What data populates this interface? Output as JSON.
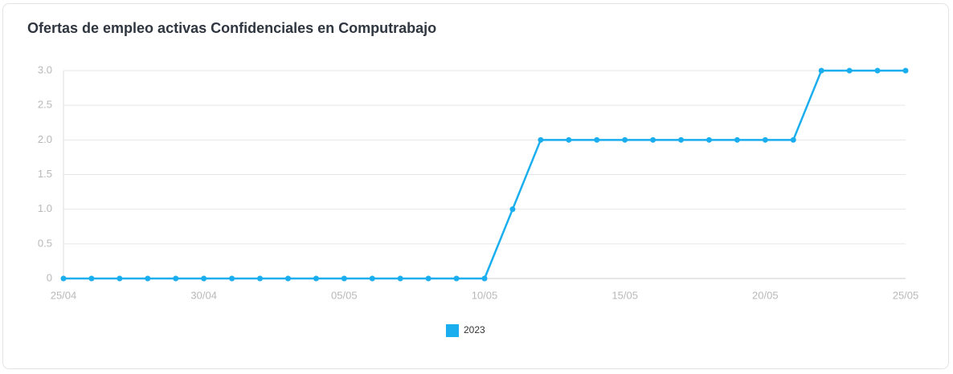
{
  "chart_data": {
    "type": "line",
    "title": "Ofertas de empleo activas Confidenciales en Computrabajo",
    "categories": [
      "25/04",
      null,
      null,
      null,
      null,
      "30/04",
      null,
      null,
      null,
      null,
      "05/05",
      null,
      null,
      null,
      null,
      "10/05",
      null,
      null,
      null,
      null,
      "15/05",
      null,
      null,
      null,
      null,
      "20/05",
      null,
      null,
      null,
      null,
      "25/05"
    ],
    "series": [
      {
        "name": "2023",
        "color": "#1aaeef",
        "values": [
          0,
          0,
          0,
          0,
          0,
          0,
          0,
          0,
          0,
          0,
          0,
          0,
          0,
          0,
          0,
          0,
          1,
          2,
          2,
          2,
          2,
          2,
          2,
          2,
          2,
          2,
          2,
          3,
          3,
          3,
          3
        ]
      }
    ],
    "ylim": [
      0,
      3
    ],
    "yticks": [
      0,
      0.5,
      {
        "value": 1,
        "label": "1.0"
      },
      1.5,
      {
        "value": 2,
        "label": "2.0"
      },
      2.5,
      {
        "value": 3,
        "label": "3.0"
      }
    ],
    "grid": true,
    "legend": "bottom"
  }
}
